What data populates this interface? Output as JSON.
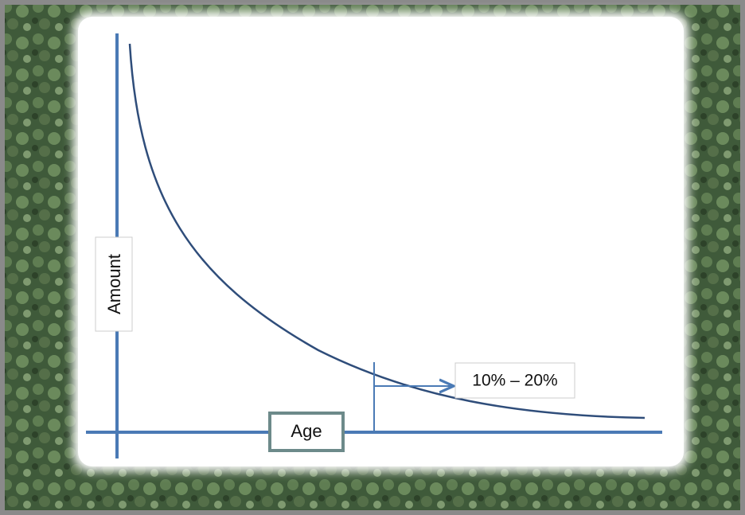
{
  "y_axis_label": "Amount",
  "x_axis_label": "Age",
  "annotation": "10% – 20%"
}
